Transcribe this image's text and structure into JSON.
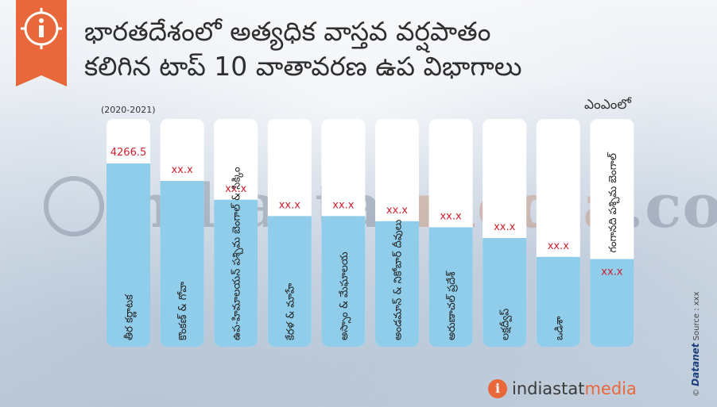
{
  "title_line1": "భారతదేశంలో అత్యధిక వాస్తవ వర్షపాతం",
  "title_line2": "కలిగిన టాప్ 10 వాతావరణ ఉప విభాగాలు",
  "period": "(2020-2021)",
  "unit": "ఎంఎంలో",
  "watermark": {
    "part1": "indiastat",
    "part2": "media",
    "part3": ".com"
  },
  "credit": {
    "prefix": "©",
    "brand": "Datanet",
    "source": "Source : xxx"
  },
  "logo": {
    "icon": "i",
    "text1": "indiastat",
    "text2": "media"
  },
  "colors": {
    "accent": "#e9683b",
    "bar_fill": "#8fcdea",
    "value_text": "#d0202e",
    "tube_bg": "#ffffff"
  },
  "chart_data": {
    "type": "bar",
    "categories": [
      "తీర కర్ణాటక",
      "కొంకణ్ & గోవా",
      "ఉప-హిమాలయన్ పశ్చిమ బెంగాల్ & సిక్కిం",
      "కేరళ & మాహే",
      "అస్సాం & మేఘాలయ",
      "అండమాన్ & నికోబార్ దీవులు",
      "అరుణాచల్ ప్రదేశ్",
      "లక్షద్వీప్",
      "ఒడిశా",
      "గంగానది పశ్చిమ బెంగాల్"
    ],
    "labels": [
      "4266.5",
      "xx.x",
      "xx.x",
      "xx.x",
      "xx.x",
      "xx.x",
      "xx.x",
      "xx.x",
      "xx.x",
      "xx.x"
    ],
    "values": [
      4266.5,
      3860,
      3420,
      3040,
      3040,
      2920,
      2780,
      2530,
      2090,
      2040
    ],
    "ylim": [
      0,
      5300
    ],
    "xlabel": "",
    "ylabel": ""
  }
}
